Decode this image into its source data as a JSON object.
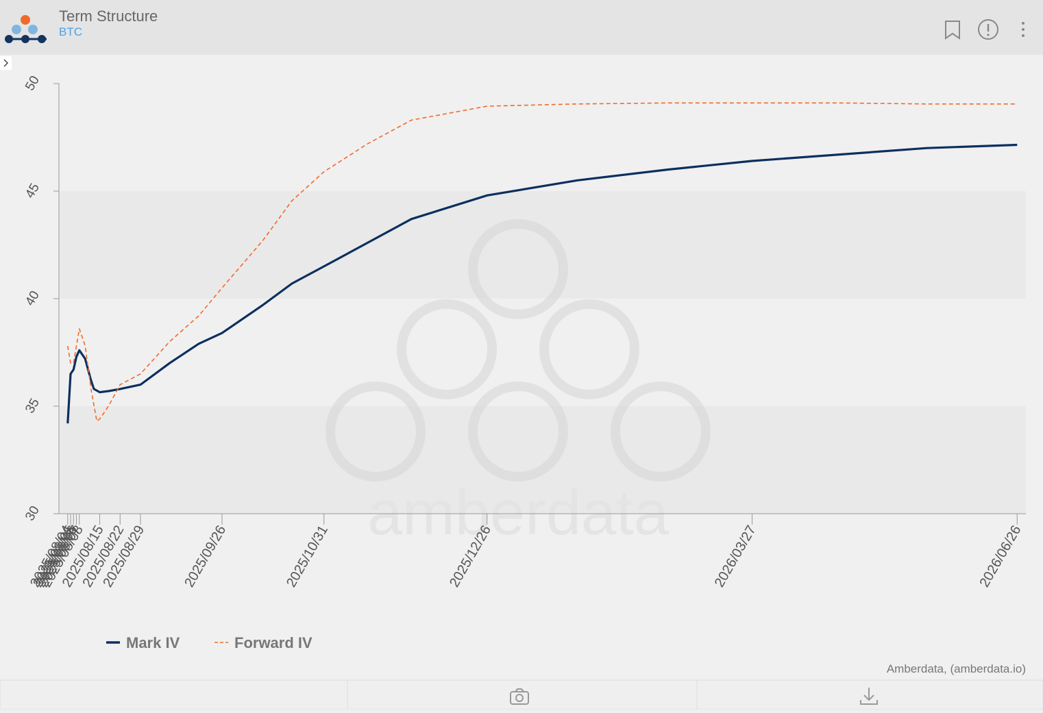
{
  "header": {
    "title": "Term Structure",
    "subtitle": "BTC"
  },
  "credit": "Amberdata, (amberdata.io)",
  "watermark": "amberdata",
  "chart_data": {
    "type": "line",
    "xlim": [
      "2025/08/01",
      "2026/06/29"
    ],
    "xticks": [
      "2025/08/04",
      "2025/08/05",
      "2025/08/06",
      "2025/08/07",
      "2025/08/08",
      "2025/08/15",
      "2025/08/22",
      "2025/08/29",
      "2025/09/26",
      "2025/10/31",
      "2025/12/26",
      "2026/03/27",
      "2026/06/26"
    ],
    "ylim": [
      30,
      50
    ],
    "yticks": [
      30,
      35,
      40,
      45,
      50
    ],
    "series": [
      {
        "name": "Mark IV",
        "color": "#0b2f5f",
        "dash": false,
        "x": [
          "2025/08/04",
          "2025/08/05",
          "2025/08/06",
          "2025/08/07",
          "2025/08/08",
          "2025/08/10",
          "2025/08/12",
          "2025/08/13",
          "2025/08/15",
          "2025/08/18",
          "2025/08/22",
          "2025/08/29",
          "2025/09/08",
          "2025/09/18",
          "2025/09/26",
          "2025/10/10",
          "2025/10/20",
          "2025/10/31",
          "2025/11/15",
          "2025/11/30",
          "2025/12/26",
          "2026/01/26",
          "2026/02/26",
          "2026/03/27",
          "2026/04/26",
          "2026/05/26",
          "2026/06/26"
        ],
        "values": [
          34.2,
          36.5,
          36.7,
          37.3,
          37.6,
          37.2,
          36.2,
          35.8,
          35.65,
          35.7,
          35.8,
          36.0,
          37.0,
          37.9,
          38.4,
          39.7,
          40.7,
          41.5,
          42.6,
          43.7,
          44.8,
          45.5,
          46.0,
          46.4,
          46.7,
          47.0,
          47.15
        ]
      },
      {
        "name": "Forward IV",
        "color": "#f26a2a",
        "dash": true,
        "x": [
          "2025/08/04",
          "2025/08/05",
          "2025/08/06",
          "2025/08/07",
          "2025/08/08",
          "2025/08/10",
          "2025/08/12",
          "2025/08/14",
          "2025/08/15",
          "2025/08/18",
          "2025/08/22",
          "2025/08/29",
          "2025/09/08",
          "2025/09/18",
          "2025/09/26",
          "2025/10/10",
          "2025/10/20",
          "2025/10/31",
          "2025/11/15",
          "2025/11/30",
          "2025/12/26",
          "2026/01/26",
          "2026/02/26",
          "2026/03/27",
          "2026/04/26",
          "2026/05/26",
          "2026/06/26"
        ],
        "values": [
          37.8,
          37.0,
          37.0,
          37.8,
          38.6,
          37.8,
          35.8,
          34.3,
          34.4,
          35.0,
          36.0,
          36.5,
          38.0,
          39.2,
          40.5,
          42.7,
          44.55,
          45.9,
          47.2,
          48.3,
          48.95,
          49.05,
          49.1,
          49.1,
          49.1,
          49.05,
          49.05
        ]
      }
    ],
    "legend": "bottom-left"
  }
}
